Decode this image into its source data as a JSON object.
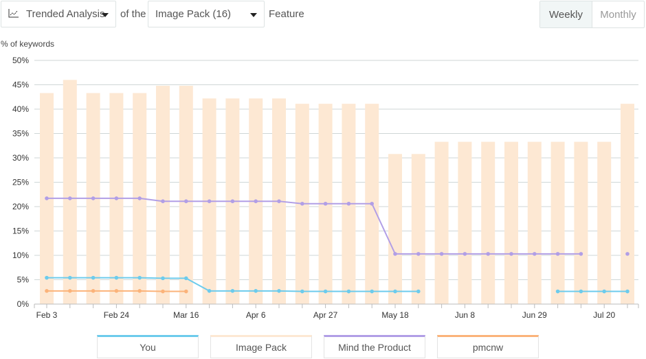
{
  "toolbar": {
    "analysis_label": "Trended Analysis",
    "analysis_icon": "line-chart-icon",
    "of_the": "of the",
    "feature_select": "Image Pack (16)",
    "feature_suffix": "Feature",
    "weekly": "Weekly",
    "monthly": "Monthly",
    "active": "Weekly"
  },
  "chart_data": {
    "type": "bar+line",
    "ylabel": "% of keywords",
    "ylim": [
      0,
      50
    ],
    "yticks": [
      "0%",
      "5%",
      "10%",
      "15%",
      "20%",
      "25%",
      "30%",
      "35%",
      "40%",
      "45%",
      "50%"
    ],
    "grid": true,
    "legend_placement": "bottom",
    "x": [
      "Feb 3",
      "Feb 10",
      "Feb 17",
      "Feb 24",
      "Mar 2",
      "Mar 9",
      "Mar 16",
      "Mar 23",
      "Mar 30",
      "Apr 6",
      "Apr 13",
      "Apr 20",
      "Apr 27",
      "May 4",
      "May 11",
      "May 18",
      "May 25",
      "Jun 1",
      "Jun 8",
      "Jun 15",
      "Jun 22",
      "Jun 29",
      "Jul 6",
      "Jul 13",
      "Jul 20",
      "Jul 27"
    ],
    "xtick_labels": [
      [
        0,
        "Feb 3"
      ],
      [
        3,
        "Feb 24"
      ],
      [
        6,
        "Mar 16"
      ],
      [
        9,
        "Apr 6"
      ],
      [
        12,
        "Apr 27"
      ],
      [
        15,
        "May 18"
      ],
      [
        18,
        "Jun 8"
      ],
      [
        21,
        "Jun 29"
      ],
      [
        24,
        "Jul 20"
      ]
    ],
    "series": [
      {
        "name": "You",
        "type": "line",
        "color": "#6ccbec",
        "values": [
          5.4,
          5.4,
          5.4,
          5.4,
          5.4,
          5.3,
          5.3,
          2.7,
          2.7,
          2.7,
          2.7,
          2.6,
          2.6,
          2.6,
          2.6,
          2.6,
          2.6,
          null,
          null,
          null,
          null,
          null,
          2.6,
          2.6,
          2.6,
          2.6
        ]
      },
      {
        "name": "Image Pack",
        "type": "bar",
        "color": "#fde8d3",
        "values": [
          43.3,
          46,
          43.3,
          43.3,
          43.3,
          44.8,
          44.8,
          42.2,
          42.2,
          42.2,
          42.2,
          41.1,
          41.1,
          41.1,
          41.1,
          30.8,
          30.8,
          33.3,
          33.3,
          33.3,
          33.3,
          33.3,
          33.3,
          33.3,
          33.3,
          41.1
        ]
      },
      {
        "name": "Mind the Product",
        "type": "line",
        "color": "#b19ee6",
        "values": [
          21.7,
          21.7,
          21.7,
          21.7,
          21.7,
          21.1,
          21.1,
          21.1,
          21.1,
          21.1,
          21.1,
          20.6,
          20.6,
          20.6,
          20.6,
          10.3,
          10.3,
          10.3,
          10.3,
          10.3,
          10.3,
          10.3,
          10.3,
          10.3,
          null,
          10.3
        ]
      },
      {
        "name": "pmcnw",
        "type": "line",
        "color": "#fbb37a",
        "values": [
          2.7,
          2.7,
          2.7,
          2.7,
          2.7,
          2.6,
          2.6,
          null,
          null,
          null,
          null,
          null,
          null,
          null,
          null,
          null,
          null,
          null,
          null,
          null,
          null,
          null,
          null,
          null,
          null,
          null
        ]
      }
    ]
  }
}
